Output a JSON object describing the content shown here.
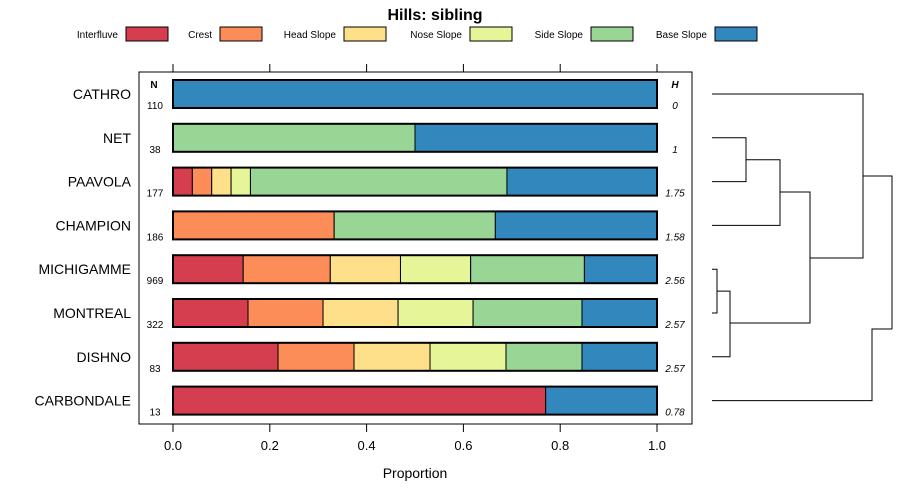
{
  "chart_data": {
    "type": "bar",
    "orientation": "horizontal",
    "stacked": true,
    "title": "Hills: sibling",
    "xlabel": "Proportion",
    "xlim": [
      0,
      1
    ],
    "xticks": [
      0.0,
      0.2,
      0.4,
      0.6,
      0.8,
      1.0
    ],
    "xtick_labels": [
      "0.0",
      "0.2",
      "0.4",
      "0.6",
      "0.8",
      "1.0"
    ],
    "n_header": "N",
    "h_header": "H",
    "legend": [
      {
        "name": "Interfluve",
        "color": "#d53e4f"
      },
      {
        "name": "Crest",
        "color": "#fc8d59"
      },
      {
        "name": "Head Slope",
        "color": "#fee08b"
      },
      {
        "name": "Nose Slope",
        "color": "#e6f598"
      },
      {
        "name": "Side Slope",
        "color": "#99d594"
      },
      {
        "name": "Base Slope",
        "color": "#3288bd"
      }
    ],
    "categories": [
      "CATHRO",
      "NET",
      "PAAVOLA",
      "CHAMPION",
      "MICHIGAMME",
      "MONTREAL",
      "DISHNO",
      "CARBONDALE"
    ],
    "n": [
      "110",
      "38",
      "177",
      "186",
      "969",
      "322",
      "83",
      "13"
    ],
    "h": [
      "0",
      "1",
      "1.75",
      "1.58",
      "2.56",
      "2.57",
      "2.57",
      "0.78"
    ],
    "series": [
      {
        "name": "Interfluve",
        "values": [
          0,
          0,
          0.04,
          0,
          0.145,
          0.155,
          0.217,
          0.77
        ]
      },
      {
        "name": "Crest",
        "values": [
          0,
          0,
          0.04,
          0.333,
          0.18,
          0.155,
          0.157,
          0
        ]
      },
      {
        "name": "Head Slope",
        "values": [
          0,
          0,
          0.04,
          0,
          0.145,
          0.155,
          0.157,
          0
        ]
      },
      {
        "name": "Nose Slope",
        "values": [
          0,
          0,
          0.04,
          0,
          0.145,
          0.155,
          0.157,
          0
        ]
      },
      {
        "name": "Side Slope",
        "values": [
          0,
          0.5,
          0.53,
          0.333,
          0.235,
          0.225,
          0.157,
          0
        ]
      },
      {
        "name": "Base Slope",
        "values": [
          1,
          0.5,
          0.31,
          0.334,
          0.15,
          0.155,
          0.155,
          0.23
        ]
      }
    ],
    "dendrogram": {
      "leaf_order": [
        "CATHRO",
        "NET",
        "PAAVOLA",
        "CHAMPION",
        "MICHIGAMME",
        "MONTREAL",
        "DISHNO",
        "CARBONDALE"
      ],
      "merges": [
        {
          "a": "MICHIGAMME",
          "b": "MONTREAL",
          "height": 0.02
        },
        {
          "a": "merge-1",
          "b": "DISHNO",
          "height": 0.07
        },
        {
          "a": "NET",
          "b": "PAAVOLA",
          "height": 0.14
        },
        {
          "a": "merge-3",
          "b": "CHAMPION",
          "height": 0.27
        },
        {
          "a": "merge-4",
          "b": "merge-2",
          "height": 0.41
        },
        {
          "a": "CATHRO",
          "b": "merge-5",
          "height": 0.62
        },
        {
          "a": "merge-6",
          "b": "CARBONDALE",
          "height": 0.6
        }
      ]
    }
  }
}
